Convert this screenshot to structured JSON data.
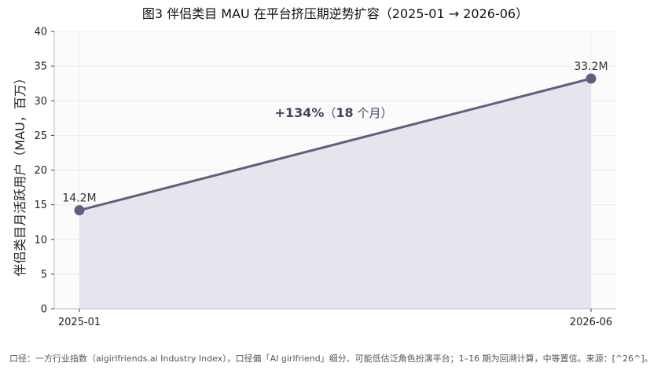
{
  "chart_data": {
    "type": "line",
    "title": "图3 伴侣类目 MAU 在平台挤压期逆势扩容（2025-01 → 2026-06）",
    "ylabel": "伴侣类目月活跃用户（MAU，百万）",
    "xlabel": "",
    "ylim": [
      0,
      40
    ],
    "yticks": [
      0,
      5,
      10,
      15,
      20,
      25,
      30,
      35,
      40
    ],
    "categories": [
      "2025-01",
      "2026-06"
    ],
    "series": [
      {
        "values": [
          14.2,
          33.2
        ],
        "value_labels": [
          "14.2M",
          "33.2M"
        ]
      }
    ],
    "annotation": {
      "main": "+134%",
      "bracket_open": "（",
      "bold_part": "18",
      "sub_part": " 个月）"
    },
    "grid": true,
    "area_fill": true,
    "colors": {
      "line": "#6b5a80",
      "fill": "#e6e4ec",
      "plot_bg": "#fbfbfc",
      "annotation": "#4a3f60"
    }
  },
  "footnote": "口径：一方行业指数（aigirlfriends.ai Industry Index），口径偏「AI girlfriend」细分、可能低估泛角色扮演平台；1–16 期为回溯计算，中等置信。来源：[^26^]。"
}
